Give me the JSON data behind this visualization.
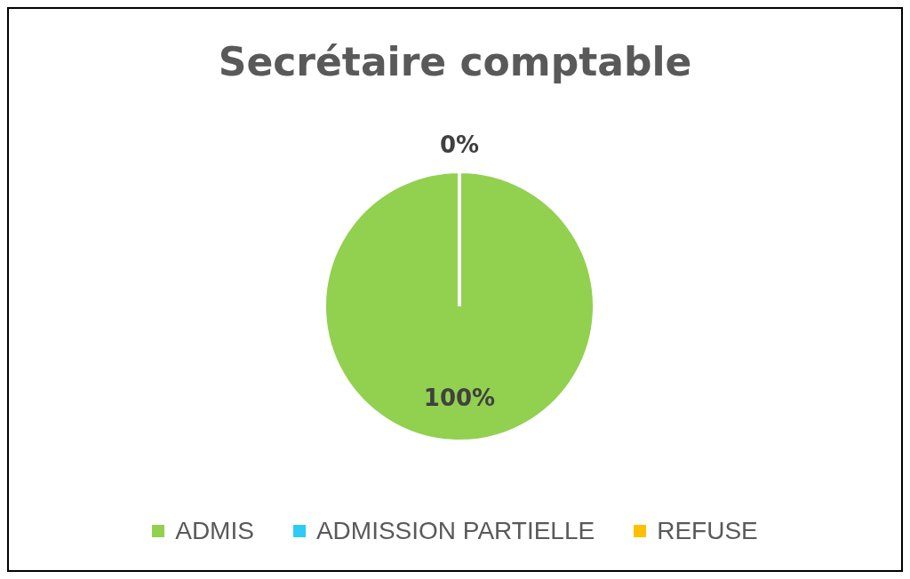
{
  "chart_data": {
    "type": "pie",
    "title": "Secrétaire comptable",
    "categories": [
      "ADMIS",
      "ADMISSION PARTIELLE",
      "REFUSE"
    ],
    "values": [
      100,
      0,
      0
    ],
    "colors": [
      "#92d050",
      "#2ecbf5",
      "#ffc000"
    ],
    "value_labels": [
      "100%",
      "0%",
      null
    ],
    "legend": "bottom"
  }
}
